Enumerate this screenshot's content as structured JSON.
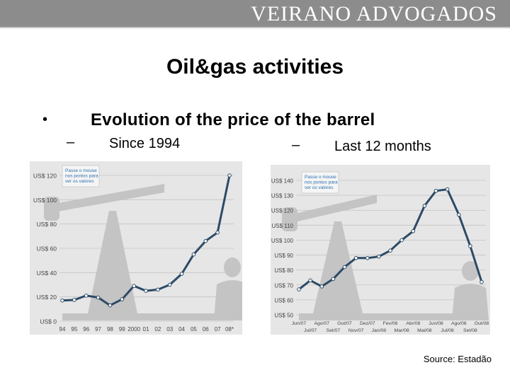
{
  "header": {
    "brand": "VEIRANO ADVOGADOS"
  },
  "slide": {
    "title": "Oil&gas activities",
    "bullet_symbol": "•",
    "bullet_text": "Evolution of the price of the barrel",
    "dash_symbol": "–",
    "left_label": "Since 1994",
    "right_label": "Last 12 months",
    "source": "Source: Estadão"
  },
  "colors": {
    "header": "#8c8c8c",
    "line": "#2c4a66",
    "point": "#ffffff",
    "chart_bg": "#e6e6e6",
    "note_bg": "#f5f5f5"
  },
  "chart_data": [
    {
      "type": "line",
      "categories": [
        "94",
        "95",
        "96",
        "97",
        "98",
        "99",
        "2000",
        "01",
        "02",
        "03",
        "04",
        "05",
        "06",
        "07",
        "08*"
      ],
      "series": [
        {
          "values": [
            17,
            17.5,
            21,
            19.5,
            13,
            18,
            29,
            25,
            26,
            30,
            39,
            55,
            66,
            73,
            120
          ]
        }
      ],
      "ylim": [
        0,
        120
      ],
      "yticks": [
        0,
        20,
        40,
        60,
        80,
        100,
        120
      ],
      "ytick_labels": [
        "US$ 0",
        "US$ 20",
        "US$ 40",
        "US$ 60",
        "US$ 80",
        "US$ 100",
        "US$ 120"
      ],
      "note": "Passe o mouse nos pontos para ver os valores"
    },
    {
      "type": "line",
      "categories": [
        "Jun/07",
        "Jul/07",
        "Ago/07",
        "Set/07",
        "Out/07",
        "Nov/07",
        "Dez/07",
        "Jan/08",
        "Fev/08",
        "Mar/08",
        "Abr/08",
        "Mai/08",
        "Jun/08",
        "Jul/08",
        "Ago/08",
        "Set/08",
        "Out/08"
      ],
      "series": [
        {
          "values": [
            67,
            73,
            69,
            74,
            82,
            88,
            88,
            89,
            93,
            100,
            106,
            123,
            133,
            134,
            117,
            96,
            72
          ]
        }
      ],
      "ylim": [
        50,
        140
      ],
      "yticks": [
        50,
        60,
        70,
        80,
        90,
        100,
        110,
        120,
        130,
        140
      ],
      "ytick_labels": [
        "US$ 50",
        "US$ 60",
        "US$ 70",
        "US$ 80",
        "US$ 90",
        "US$ 100",
        "US$ 110",
        "US$ 120",
        "US$ 130",
        "US$ 140"
      ],
      "note": "Passe o mouse nos pontos para ver os valores"
    }
  ]
}
